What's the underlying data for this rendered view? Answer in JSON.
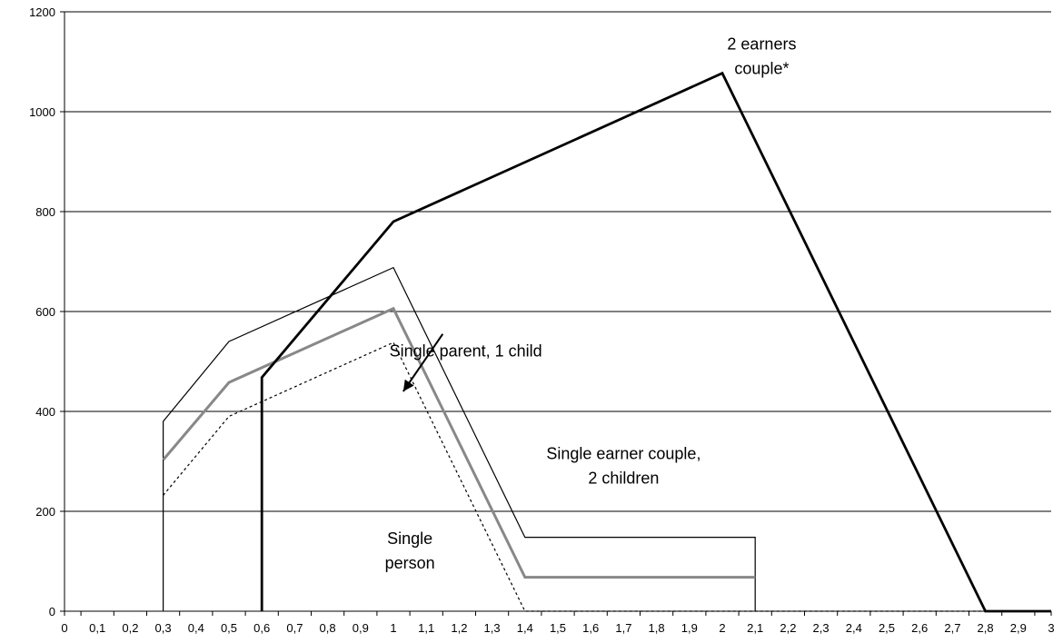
{
  "chart_data": {
    "type": "line",
    "title": "",
    "xlabel": "",
    "ylabel": "",
    "xlim": [
      0,
      3
    ],
    "ylim": [
      0,
      1200
    ],
    "grid": "horizontal",
    "x_tick_labels": [
      "0",
      "0,1",
      "0,2",
      "0,3",
      "0,4",
      "0,5",
      "0,6",
      "0,7",
      "0,8",
      "0,9",
      "1",
      "1,1",
      "1,2",
      "1,3",
      "1,4",
      "1,5",
      "1,6",
      "1,7",
      "1,8",
      "1,9",
      "2",
      "2,1",
      "2,2",
      "2,3",
      "2,4",
      "2,5",
      "2,6",
      "2,7",
      "2,8",
      "2,9",
      "3"
    ],
    "y_tick_labels": [
      "0",
      "200",
      "400",
      "600",
      "800",
      "1000",
      "1200"
    ],
    "y_ticks": [
      0,
      200,
      400,
      600,
      800,
      1000,
      1200
    ],
    "series": [
      {
        "name": "Single earner couple, 2 children",
        "color": "#000000",
        "style": "thin",
        "x": [
          0.3,
          0.3,
          0.5,
          1.0,
          1.4,
          2.1,
          2.1
        ],
        "y": [
          0,
          380,
          540,
          688,
          148,
          148,
          0
        ]
      },
      {
        "name": "Single parent, 1 child",
        "color": "#888888",
        "style": "thick-gray",
        "x": [
          0.3,
          0.5,
          1.0,
          1.4,
          2.1
        ],
        "y": [
          303,
          458,
          606,
          68,
          68
        ]
      },
      {
        "name": "Single person",
        "color": "#000000",
        "style": "dotted",
        "x": [
          0.3,
          0.5,
          1.0,
          1.4,
          3.0
        ],
        "y": [
          232,
          390,
          538,
          0,
          0
        ]
      },
      {
        "name": "2 earners couple*",
        "color": "#000000",
        "style": "thick",
        "x": [
          0.6,
          0.6,
          1.0,
          2.0,
          2.8,
          3.0
        ],
        "y": [
          0,
          468,
          780,
          1077,
          0,
          0
        ]
      }
    ],
    "annotations": [
      {
        "lines": [
          "2 earners",
          "couple*"
        ],
        "x": 2.12,
        "y": 1125
      },
      {
        "lines": [
          "Single parent, 1 child"
        ],
        "x": 1.22,
        "y": 510
      },
      {
        "lines": [
          "Single earner couple,",
          "2 children"
        ],
        "x": 1.7,
        "y": 305
      },
      {
        "lines": [
          "Single",
          "person"
        ],
        "x": 1.05,
        "y": 135
      }
    ],
    "arrow": {
      "from": [
        1.15,
        555
      ],
      "to": [
        1.03,
        440
      ]
    }
  }
}
